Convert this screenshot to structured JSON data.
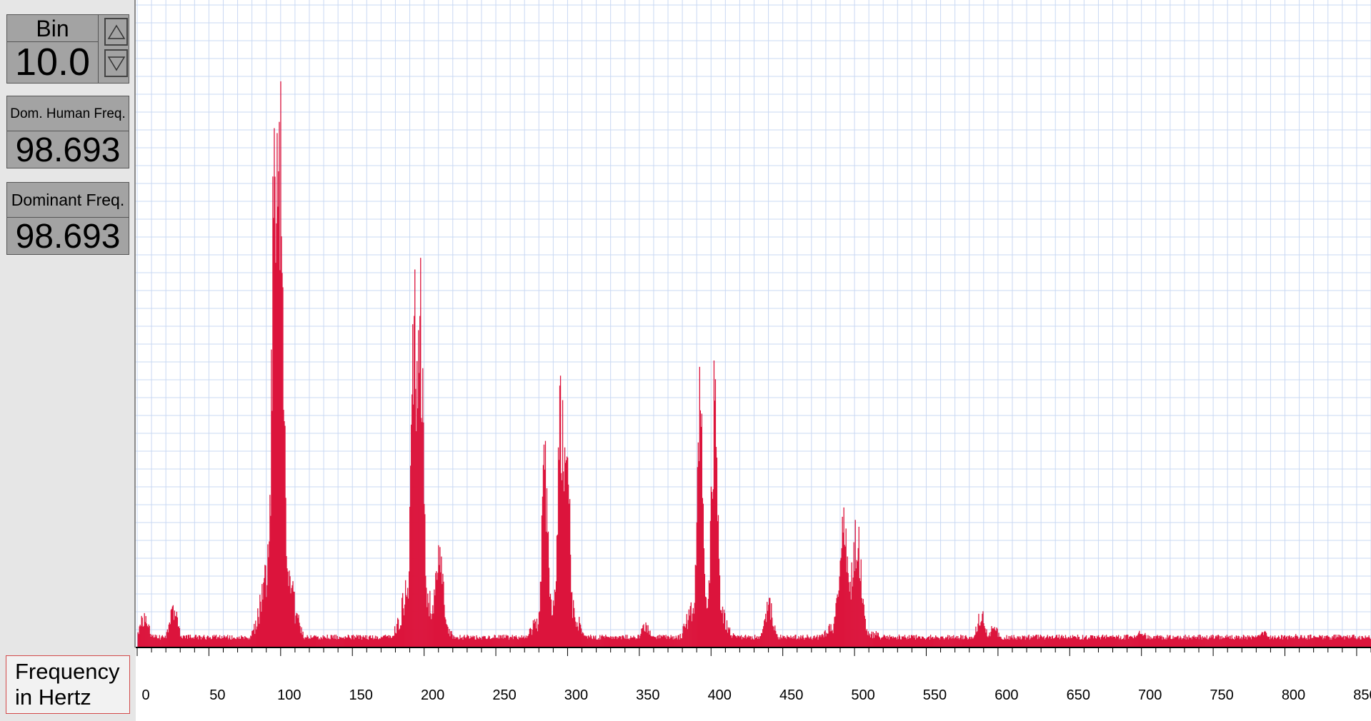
{
  "controls": {
    "bin_label": "Bin",
    "bin_value": "10.0",
    "dom_human_label": "Dom. Human Freq.",
    "dom_human_value": "98.693",
    "dominant_label": "Dominant Freq.",
    "dominant_value": "98.693",
    "axis_title_line1": "Frequency",
    "axis_title_line2": "in Hertz"
  },
  "colors": {
    "bar": "#dc143c",
    "grid": "#c9d8f3",
    "background": "#ffffff"
  },
  "chart_data": {
    "type": "bar",
    "xlabel": "Frequency in Hertz",
    "xlim": [
      0,
      860
    ],
    "ylim": [
      0,
      1
    ],
    "x_ticks": [
      0,
      50,
      100,
      150,
      200,
      250,
      300,
      350,
      400,
      450,
      500,
      550,
      600,
      650,
      700,
      750,
      800,
      850
    ],
    "x_tick_labels": [
      "0",
      "50",
      "100",
      "150",
      "200",
      "250",
      "300",
      "350",
      "400",
      "450",
      "500",
      "550",
      "600",
      "650",
      "700",
      "750",
      "800",
      "850"
    ],
    "grid": true,
    "peaks": [
      {
        "x": 5,
        "y": 0.06
      },
      {
        "x": 25,
        "y": 0.07
      },
      {
        "x": 60,
        "y": 0.02
      },
      {
        "x": 96,
        "y": 0.99
      },
      {
        "x": 98.7,
        "y": 1.0
      },
      {
        "x": 100,
        "y": 0.74
      },
      {
        "x": 193,
        "y": 0.68
      },
      {
        "x": 197,
        "y": 0.62
      },
      {
        "x": 210,
        "y": 0.16
      },
      {
        "x": 284,
        "y": 0.34
      },
      {
        "x": 295,
        "y": 0.49
      },
      {
        "x": 299,
        "y": 0.42
      },
      {
        "x": 354,
        "y": 0.04
      },
      {
        "x": 392,
        "y": 0.47
      },
      {
        "x": 402,
        "y": 0.45
      },
      {
        "x": 440,
        "y": 0.08
      },
      {
        "x": 492,
        "y": 0.23
      },
      {
        "x": 501,
        "y": 0.22
      },
      {
        "x": 588,
        "y": 0.06
      },
      {
        "x": 597,
        "y": 0.04
      },
      {
        "x": 681,
        "y": 0.02
      },
      {
        "x": 700,
        "y": 0.03
      },
      {
        "x": 785,
        "y": 0.027
      },
      {
        "x": 808,
        "y": 0.022
      }
    ]
  }
}
